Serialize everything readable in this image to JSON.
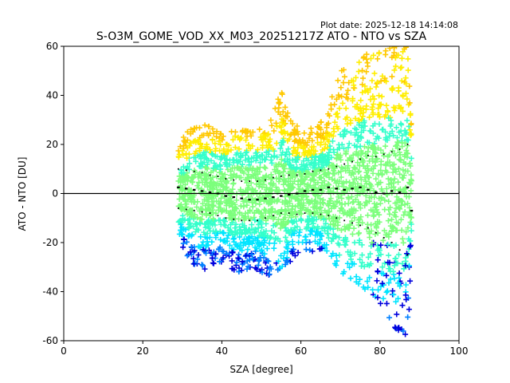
{
  "plot_date": "Plot date: 2025-12-18 14:14:08",
  "chart_data": {
    "type": "scatter",
    "title": "S-O3M_GOME_VOD_XX_M03_20251217Z ATO - NTO vs SZA",
    "xlabel": "SZA [degree]",
    "ylabel": "ATO - NTO [DU]",
    "xlim": [
      0,
      100
    ],
    "ylim": [
      -60,
      60
    ],
    "x_ticks": [
      0,
      20,
      40,
      60,
      80,
      100
    ],
    "y_ticks": [
      -60,
      -40,
      -20,
      0,
      20,
      40,
      60
    ],
    "grid": false,
    "legend": "none",
    "reference_line_y": 0,
    "point_marker": "+",
    "density_colors": [
      "#0000dd",
      "#0080ff",
      "#00e5ff",
      "#34ffcb",
      "#7cff7c",
      "#ffee00",
      "#ffc800"
    ],
    "scatter_envelope": [
      {
        "sza": 29,
        "lower": -18,
        "upper": 22
      },
      {
        "sza": 32,
        "lower": -28,
        "upper": 26
      },
      {
        "sza": 36,
        "lower": -31,
        "upper": 28
      },
      {
        "sza": 40,
        "lower": -28,
        "upper": 24
      },
      {
        "sza": 44,
        "lower": -32,
        "upper": 26
      },
      {
        "sza": 48,
        "lower": -30,
        "upper": 25
      },
      {
        "sza": 52,
        "lower": -34,
        "upper": 28
      },
      {
        "sza": 55,
        "lower": -30,
        "upper": 42
      },
      {
        "sza": 58,
        "lower": -27,
        "upper": 28
      },
      {
        "sza": 62,
        "lower": -24,
        "upper": 26
      },
      {
        "sza": 66,
        "lower": -22,
        "upper": 30
      },
      {
        "sza": 70,
        "lower": -32,
        "upper": 50
      },
      {
        "sza": 74,
        "lower": -36,
        "upper": 52
      },
      {
        "sza": 77,
        "lower": -40,
        "upper": 58
      },
      {
        "sza": 80,
        "lower": -45,
        "upper": 58
      },
      {
        "sza": 84,
        "lower": -55,
        "upper": 60
      },
      {
        "sza": 87,
        "lower": -58,
        "upper": 60
      },
      {
        "sza": 88,
        "lower": -30,
        "upper": 30
      }
    ],
    "series": [
      {
        "role": "mean",
        "x": [
          29,
          31,
          33,
          35,
          37,
          39,
          41,
          43,
          45,
          47,
          49,
          51,
          53,
          55,
          57,
          59,
          61,
          63,
          65,
          67,
          69,
          71,
          73,
          75,
          77,
          79,
          81,
          83,
          85,
          87,
          88
        ],
        "y": [
          2.5,
          2,
          1.5,
          1,
          0.5,
          0,
          -1,
          -1.5,
          -2,
          -2.5,
          -2.5,
          -2,
          -1.5,
          -1,
          -0.5,
          0,
          1,
          1.5,
          1.5,
          2.5,
          2,
          1.5,
          2,
          2.5,
          1.5,
          0.5,
          0,
          1,
          0.5,
          2.5,
          -7
        ]
      },
      {
        "role": "mean + stddev",
        "x": [
          29,
          31,
          33,
          35,
          37,
          39,
          41,
          43,
          45,
          47,
          49,
          51,
          53,
          55,
          57,
          59,
          61,
          63,
          65,
          67,
          69,
          71,
          73,
          75,
          77,
          79,
          81,
          83,
          85,
          87
        ],
        "y": [
          10,
          9.5,
          9,
          8.5,
          7.5,
          7,
          6,
          5.5,
          5,
          5,
          5,
          5.5,
          6.5,
          7,
          7.5,
          7.5,
          8,
          9,
          9.5,
          10,
          11,
          12,
          13,
          14,
          15.5,
          15,
          16,
          17,
          18,
          20
        ]
      },
      {
        "role": "mean - stddev",
        "x": [
          29,
          31,
          33,
          35,
          37,
          39,
          41,
          43,
          45,
          47,
          49,
          51,
          53,
          55,
          57,
          59,
          61,
          63,
          65,
          67,
          69,
          71,
          73,
          75,
          77,
          79,
          81,
          83,
          85,
          87
        ],
        "y": [
          -6,
          -6.5,
          -7,
          -7.5,
          -8,
          -9,
          -10,
          -10.5,
          -11,
          -11,
          -11,
          -10,
          -9,
          -8,
          -8,
          -8.5,
          -8,
          -8,
          -8.5,
          -9,
          -10,
          -11,
          -12,
          -13,
          -14,
          -16,
          -18,
          -20,
          -23,
          -25
        ]
      }
    ]
  }
}
